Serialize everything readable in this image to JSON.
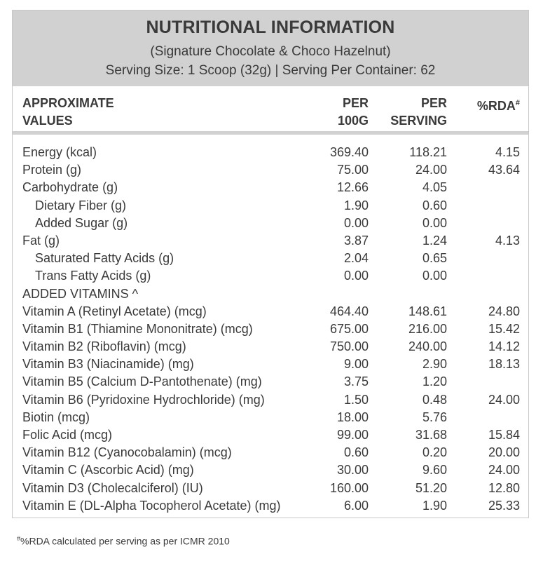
{
  "header": {
    "title": "NUTRITIONAL INFORMATION",
    "subtitle": "(Signature Chocolate & Choco Hazelnut)",
    "serving": "Serving Size: 1 Scoop (32g)  |  Serving Per Container: 62"
  },
  "columns": {
    "label_line1": "APPROXIMATE",
    "label_line2": "VALUES",
    "per100g_line1": "PER",
    "per100g_line2": "100G",
    "perserving_line1": "PER",
    "perserving_line2": "SERVING",
    "rda": "%RDA",
    "rda_mark": "#"
  },
  "rows": [
    {
      "label": "Energy (kcal)",
      "per100g": "369.40",
      "perserving": "118.21",
      "rda": "4.15",
      "indent": false
    },
    {
      "label": "Protein (g)",
      "per100g": "75.00",
      "perserving": "24.00",
      "rda": "43.64",
      "indent": false
    },
    {
      "label": "Carbohydrate (g)",
      "per100g": "12.66",
      "perserving": "4.05",
      "rda": "",
      "indent": false
    },
    {
      "label": "Dietary Fiber (g)",
      "per100g": "1.90",
      "perserving": "0.60",
      "rda": "",
      "indent": true
    },
    {
      "label": "Added Sugar (g)",
      "per100g": "0.00",
      "perserving": "0.00",
      "rda": "",
      "indent": true
    },
    {
      "label": "Fat (g)",
      "per100g": "3.87",
      "perserving": "1.24",
      "rda": "4.13",
      "indent": false
    },
    {
      "label": "Saturated Fatty Acids (g)",
      "per100g": "2.04",
      "perserving": "0.65",
      "rda": "",
      "indent": true
    },
    {
      "label": "Trans Fatty Acids (g)",
      "per100g": "0.00",
      "perserving": "0.00",
      "rda": "",
      "indent": true
    },
    {
      "label": "ADDED VITAMINS ^",
      "per100g": "",
      "perserving": "",
      "rda": "",
      "indent": false
    },
    {
      "label": "Vitamin A (Retinyl Acetate) (mcg)",
      "per100g": "464.40",
      "perserving": "148.61",
      "rda": "24.80",
      "indent": false
    },
    {
      "label": "Vitamin B1 (Thiamine Mononitrate) (mcg)",
      "per100g": "675.00",
      "perserving": "216.00",
      "rda": "15.42",
      "indent": false
    },
    {
      "label": "Vitamin B2 (Riboflavin) (mcg)",
      "per100g": "750.00",
      "perserving": "240.00",
      "rda": "14.12",
      "indent": false
    },
    {
      "label": "Vitamin B3 (Niacinamide) (mg)",
      "per100g": "9.00",
      "perserving": "2.90",
      "rda": "18.13",
      "indent": false
    },
    {
      "label": "Vitamin B5 (Calcium D-Pantothenate) (mg)",
      "per100g": "3.75",
      "perserving": "1.20",
      "rda": "",
      "indent": false
    },
    {
      "label": "Vitamin B6 (Pyridoxine Hydrochloride) (mg)",
      "per100g": "1.50",
      "perserving": "0.48",
      "rda": "24.00",
      "indent": false
    },
    {
      "label": "Biotin (mcg)",
      "per100g": "18.00",
      "perserving": "5.76",
      "rda": "",
      "indent": false
    },
    {
      "label": "Folic Acid (mcg)",
      "per100g": "99.00",
      "perserving": "31.68",
      "rda": "15.84",
      "indent": false
    },
    {
      "label": "Vitamin B12 (Cyanocobalamin) (mcg)",
      "per100g": "0.60",
      "perserving": "0.20",
      "rda": "20.00",
      "indent": false
    },
    {
      "label": "Vitamin C (Ascorbic Acid) (mg)",
      "per100g": "30.00",
      "perserving": "9.60",
      "rda": "24.00",
      "indent": false
    },
    {
      "label": "Vitamin D3 (Cholecalciferol) (IU)",
      "per100g": "160.00",
      "perserving": "51.20",
      "rda": "12.80",
      "indent": false
    },
    {
      "label": "Vitamin E (DL-Alpha Tocopherol Acetate) (mg)",
      "per100g": "6.00",
      "perserving": "1.90",
      "rda": "25.33",
      "indent": false
    }
  ],
  "footnote": {
    "mark": "#",
    "text": "%RDA calculated per serving as per ICMR 2010"
  },
  "colors": {
    "header_bg": "#d1d1d1",
    "text": "#3a3a3a"
  }
}
